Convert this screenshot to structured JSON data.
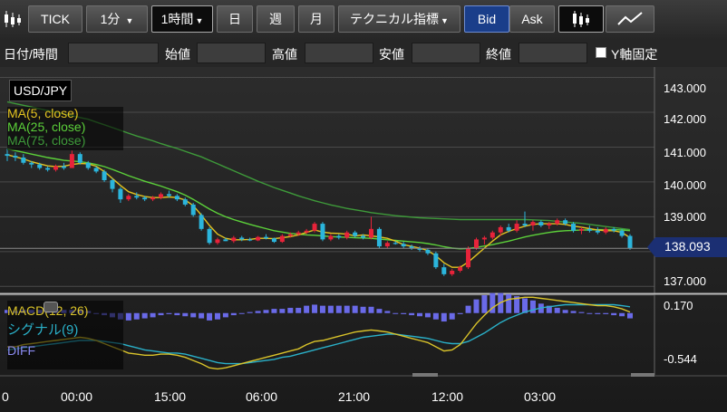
{
  "toolbar": {
    "candle_icon": "candlestick-icon",
    "tick_label": "TICK",
    "interval": "1分",
    "period": "1時間",
    "day": "日",
    "week": "週",
    "month": "月",
    "technical": "テクニカル指標",
    "bid": "Bid",
    "ask": "Ask",
    "line_icon": "line-chart-icon"
  },
  "filter": {
    "datetime": "日付/時間",
    "open": "始値",
    "high": "高値",
    "low": "安値",
    "close": "終値",
    "yaxis_fixed": "Y軸固定"
  },
  "chart": {
    "symbol": "USD/JPY",
    "ma_labels": [
      "MA(5, close)",
      "MA(25, close)",
      "MA(75, close)"
    ],
    "price_ticks": [
      "143.000",
      "142.000",
      "141.000",
      "140.000",
      "139.000",
      "138.000",
      "137.000"
    ],
    "current_price": "138.093",
    "macd_label": "MACD(12, 26)",
    "signal_label": "シグナル(9)",
    "diff_label": "DIFF",
    "macd_ticks": [
      "0.170",
      "-0.544"
    ],
    "time_labels": [
      "0",
      "00:00",
      "15:00",
      "06:00",
      "21:00",
      "12:00",
      "03:00"
    ],
    "colors": {
      "up": "#e8233a",
      "down": "#2bb5dc",
      "ma5": "#e3c320",
      "ma25": "#5cd13a",
      "ma75": "#3e9a3a",
      "macd": "#d9c32a",
      "signal": "#2ab0c8",
      "diff": "#6a6ae8",
      "accent": "#1a3e8a"
    }
  },
  "chart_data": {
    "type": "candlestick",
    "yrange": [
      136.8,
      143.3
    ],
    "macd_range": [
      -0.544,
      0.17
    ],
    "candles": [
      [
        140.8,
        140.95,
        140.6,
        140.75
      ],
      [
        140.75,
        140.85,
        140.6,
        140.7
      ],
      [
        140.7,
        140.8,
        140.5,
        140.55
      ],
      [
        140.55,
        140.6,
        140.4,
        140.5
      ],
      [
        140.5,
        140.55,
        140.35,
        140.4
      ],
      [
        140.4,
        140.45,
        140.3,
        140.35
      ],
      [
        140.35,
        140.5,
        140.3,
        140.45
      ],
      [
        140.45,
        140.55,
        140.35,
        140.4
      ],
      [
        140.4,
        140.9,
        140.4,
        140.8
      ],
      [
        140.8,
        140.85,
        140.5,
        140.55
      ],
      [
        140.55,
        140.6,
        140.35,
        140.4
      ],
      [
        140.4,
        140.45,
        140.25,
        140.3
      ],
      [
        140.3,
        140.35,
        140.0,
        140.05
      ],
      [
        140.05,
        140.1,
        139.7,
        139.8
      ],
      [
        139.8,
        139.85,
        139.4,
        139.5
      ],
      [
        139.5,
        139.65,
        139.45,
        139.6
      ],
      [
        139.6,
        139.7,
        139.5,
        139.55
      ],
      [
        139.55,
        139.6,
        139.45,
        139.5
      ],
      [
        139.5,
        139.6,
        139.45,
        139.55
      ],
      [
        139.55,
        139.7,
        139.5,
        139.65
      ],
      [
        139.65,
        139.75,
        139.55,
        139.6
      ],
      [
        139.6,
        139.65,
        139.45,
        139.5
      ],
      [
        139.5,
        139.55,
        139.3,
        139.35
      ],
      [
        139.35,
        139.4,
        139.0,
        139.05
      ],
      [
        139.05,
        139.1,
        138.6,
        138.65
      ],
      [
        138.65,
        138.7,
        138.2,
        138.25
      ],
      [
        138.25,
        138.4,
        138.2,
        138.35
      ],
      [
        138.35,
        138.4,
        138.3,
        138.3
      ],
      [
        138.3,
        138.45,
        138.25,
        138.4
      ],
      [
        138.4,
        138.45,
        138.3,
        138.35
      ],
      [
        138.35,
        138.4,
        138.3,
        138.32
      ],
      [
        138.32,
        138.45,
        138.3,
        138.42
      ],
      [
        138.42,
        138.5,
        138.35,
        138.38
      ],
      [
        138.38,
        138.4,
        138.25,
        138.28
      ],
      [
        138.28,
        138.5,
        138.25,
        138.45
      ],
      [
        138.45,
        138.55,
        138.4,
        138.5
      ],
      [
        138.5,
        138.6,
        138.45,
        138.55
      ],
      [
        138.55,
        138.65,
        138.5,
        138.6
      ],
      [
        138.6,
        138.85,
        138.55,
        138.8
      ],
      [
        138.8,
        138.85,
        138.3,
        138.35
      ],
      [
        138.35,
        138.5,
        138.3,
        138.45
      ],
      [
        138.45,
        138.5,
        138.35,
        138.4
      ],
      [
        138.4,
        138.6,
        138.35,
        138.55
      ],
      [
        138.55,
        138.6,
        138.4,
        138.45
      ],
      [
        138.45,
        138.5,
        138.35,
        138.4
      ],
      [
        138.4,
        139.0,
        138.35,
        138.65
      ],
      [
        138.65,
        138.7,
        138.1,
        138.15
      ],
      [
        138.15,
        138.3,
        138.1,
        138.25
      ],
      [
        138.25,
        138.3,
        138.2,
        138.22
      ],
      [
        138.22,
        138.28,
        138.1,
        138.15
      ],
      [
        138.15,
        138.2,
        138.05,
        138.1
      ],
      [
        138.1,
        138.15,
        138.0,
        138.05
      ],
      [
        138.05,
        138.1,
        137.9,
        137.95
      ],
      [
        137.95,
        138.0,
        137.5,
        137.55
      ],
      [
        137.55,
        137.65,
        137.3,
        137.35
      ],
      [
        137.35,
        137.5,
        137.3,
        137.45
      ],
      [
        137.45,
        137.6,
        137.4,
        137.55
      ],
      [
        137.55,
        138.15,
        137.5,
        138.1
      ],
      [
        138.1,
        138.4,
        138.05,
        138.35
      ],
      [
        138.35,
        138.45,
        138.2,
        138.4
      ],
      [
        138.4,
        138.6,
        138.35,
        138.55
      ],
      [
        138.55,
        138.75,
        138.45,
        138.7
      ],
      [
        138.7,
        138.8,
        138.55,
        138.6
      ],
      [
        138.6,
        138.9,
        138.55,
        138.8
      ],
      [
        138.8,
        139.15,
        138.7,
        138.75
      ],
      [
        138.75,
        138.9,
        138.6,
        138.85
      ],
      [
        138.85,
        138.9,
        138.7,
        138.75
      ],
      [
        138.75,
        138.85,
        138.65,
        138.8
      ],
      [
        138.8,
        138.95,
        138.75,
        138.9
      ],
      [
        138.9,
        138.95,
        138.75,
        138.8
      ],
      [
        138.8,
        138.85,
        138.55,
        138.6
      ],
      [
        138.6,
        138.7,
        138.5,
        138.65
      ],
      [
        138.65,
        138.75,
        138.55,
        138.6
      ],
      [
        138.6,
        138.7,
        138.5,
        138.55
      ],
      [
        138.55,
        138.7,
        138.5,
        138.65
      ],
      [
        138.65,
        138.7,
        138.55,
        138.6
      ],
      [
        138.6,
        138.65,
        138.4,
        138.45
      ],
      [
        138.45,
        138.5,
        138.05,
        138.09
      ]
    ],
    "ma5": [
      140.78,
      140.72,
      140.66,
      140.58,
      140.52,
      140.46,
      140.44,
      140.45,
      140.5,
      140.53,
      140.52,
      140.45,
      140.3,
      140.1,
      139.9,
      139.72,
      139.64,
      139.58,
      139.55,
      139.55,
      139.57,
      139.55,
      139.48,
      139.32,
      139.05,
      138.75,
      138.5,
      138.38,
      138.34,
      138.34,
      138.35,
      138.38,
      138.38,
      138.37,
      138.4,
      138.43,
      138.48,
      138.55,
      138.62,
      138.56,
      138.53,
      138.52,
      138.5,
      138.45,
      138.48,
      138.45,
      138.42,
      138.38,
      138.3,
      138.2,
      138.15,
      138.1,
      138.03,
      137.88,
      137.68,
      137.55,
      137.55,
      137.7,
      137.9,
      138.1,
      138.3,
      138.48,
      138.58,
      138.66,
      138.73,
      138.78,
      138.8,
      138.8,
      138.8,
      138.78,
      138.73,
      138.7,
      138.66,
      138.62,
      138.6,
      138.6,
      138.55,
      138.4
    ],
    "ma25": [
      140.95,
      140.9,
      140.85,
      140.8,
      140.75,
      140.7,
      140.66,
      140.62,
      140.6,
      140.58,
      140.55,
      140.5,
      140.44,
      140.36,
      140.27,
      140.18,
      140.1,
      140.02,
      139.95,
      139.88,
      139.8,
      139.72,
      139.62,
      139.5,
      139.36,
      139.22,
      139.1,
      139.0,
      138.92,
      138.85,
      138.78,
      138.72,
      138.66,
      138.6,
      138.56,
      138.52,
      138.5,
      138.48,
      138.47,
      138.45,
      138.43,
      138.42,
      138.41,
      138.4,
      138.39,
      138.38,
      138.36,
      138.34,
      138.32,
      138.3,
      138.28,
      138.26,
      138.23,
      138.19,
      138.14,
      138.1,
      138.08,
      138.09,
      138.12,
      138.16,
      138.2,
      138.25,
      138.3,
      138.36,
      138.42,
      138.47,
      138.51,
      138.55,
      138.58,
      138.6,
      138.61,
      138.62,
      138.62,
      138.63,
      138.63,
      138.63,
      138.62,
      138.6
    ],
    "ma75": [
      142.3,
      142.25,
      142.2,
      142.15,
      142.1,
      142.05,
      142.0,
      141.95,
      141.9,
      141.85,
      141.8,
      141.72,
      141.64,
      141.56,
      141.48,
      141.4,
      141.32,
      141.25,
      141.18,
      141.1,
      141.03,
      140.96,
      140.88,
      140.8,
      140.72,
      140.62,
      140.52,
      140.42,
      140.32,
      140.22,
      140.12,
      140.02,
      139.93,
      139.84,
      139.76,
      139.68,
      139.6,
      139.53,
      139.46,
      139.4,
      139.34,
      139.29,
      139.24,
      139.2,
      139.16,
      139.12,
      139.09,
      139.06,
      139.03,
      139.01,
      138.99,
      138.97,
      138.96,
      138.95,
      138.94,
      138.93,
      138.92,
      138.92,
      138.92,
      138.92,
      138.92,
      138.92,
      138.92,
      138.92,
      138.92,
      138.91,
      138.9,
      138.89,
      138.87,
      138.85,
      138.83,
      138.81,
      138.78,
      138.75,
      138.72,
      138.69,
      138.66,
      138.63
    ],
    "macd": [
      -0.32,
      -0.32,
      -0.3,
      -0.29,
      -0.28,
      -0.27,
      -0.26,
      -0.25,
      -0.24,
      -0.23,
      -0.24,
      -0.26,
      -0.29,
      -0.32,
      -0.35,
      -0.38,
      -0.39,
      -0.4,
      -0.4,
      -0.39,
      -0.39,
      -0.4,
      -0.42,
      -0.45,
      -0.48,
      -0.52,
      -0.53,
      -0.52,
      -0.5,
      -0.48,
      -0.46,
      -0.44,
      -0.42,
      -0.4,
      -0.38,
      -0.36,
      -0.34,
      -0.3,
      -0.27,
      -0.26,
      -0.24,
      -0.22,
      -0.2,
      -0.18,
      -0.17,
      -0.16,
      -0.17,
      -0.18,
      -0.2,
      -0.22,
      -0.24,
      -0.26,
      -0.28,
      -0.32,
      -0.36,
      -0.35,
      -0.3,
      -0.2,
      -0.1,
      -0.02,
      0.05,
      0.1,
      0.13,
      0.14,
      0.15,
      0.15,
      0.14,
      0.13,
      0.12,
      0.11,
      0.1,
      0.09,
      0.08,
      0.07,
      0.07,
      0.06,
      0.04,
      0.01
    ],
    "signal": [
      -0.35,
      -0.34,
      -0.33,
      -0.32,
      -0.31,
      -0.3,
      -0.29,
      -0.28,
      -0.27,
      -0.26,
      -0.26,
      -0.26,
      -0.27,
      -0.28,
      -0.29,
      -0.31,
      -0.33,
      -0.35,
      -0.36,
      -0.37,
      -0.38,
      -0.38,
      -0.39,
      -0.41,
      -0.43,
      -0.45,
      -0.47,
      -0.48,
      -0.48,
      -0.48,
      -0.47,
      -0.46,
      -0.45,
      -0.44,
      -0.42,
      -0.41,
      -0.39,
      -0.37,
      -0.35,
      -0.33,
      -0.31,
      -0.29,
      -0.27,
      -0.25,
      -0.23,
      -0.22,
      -0.21,
      -0.2,
      -0.2,
      -0.21,
      -0.22,
      -0.23,
      -0.24,
      -0.26,
      -0.28,
      -0.29,
      -0.29,
      -0.27,
      -0.23,
      -0.19,
      -0.14,
      -0.09,
      -0.05,
      -0.02,
      0.01,
      0.03,
      0.05,
      0.06,
      0.07,
      0.08,
      0.08,
      0.08,
      0.08,
      0.08,
      0.08,
      0.08,
      0.07,
      0.06
    ],
    "diff": [
      0.03,
      0.02,
      0.03,
      0.03,
      0.03,
      0.03,
      0.03,
      0.03,
      0.03,
      0.03,
      0.02,
      0.0,
      -0.02,
      -0.04,
      -0.06,
      -0.07,
      -0.06,
      -0.05,
      -0.04,
      -0.02,
      -0.01,
      -0.02,
      -0.03,
      -0.04,
      -0.05,
      -0.07,
      -0.06,
      -0.04,
      -0.02,
      0.0,
      0.01,
      0.02,
      0.03,
      0.04,
      0.04,
      0.05,
      0.05,
      0.07,
      0.08,
      0.07,
      0.07,
      0.07,
      0.07,
      0.07,
      0.06,
      0.06,
      0.04,
      0.02,
      0.0,
      -0.01,
      -0.02,
      -0.03,
      -0.04,
      -0.06,
      -0.08,
      -0.06,
      -0.01,
      0.07,
      0.13,
      0.17,
      0.19,
      0.19,
      0.18,
      0.16,
      0.14,
      0.12,
      0.09,
      0.07,
      0.05,
      0.03,
      0.02,
      0.01,
      0.0,
      -0.01,
      -0.01,
      -0.02,
      -0.03,
      -0.05
    ]
  }
}
